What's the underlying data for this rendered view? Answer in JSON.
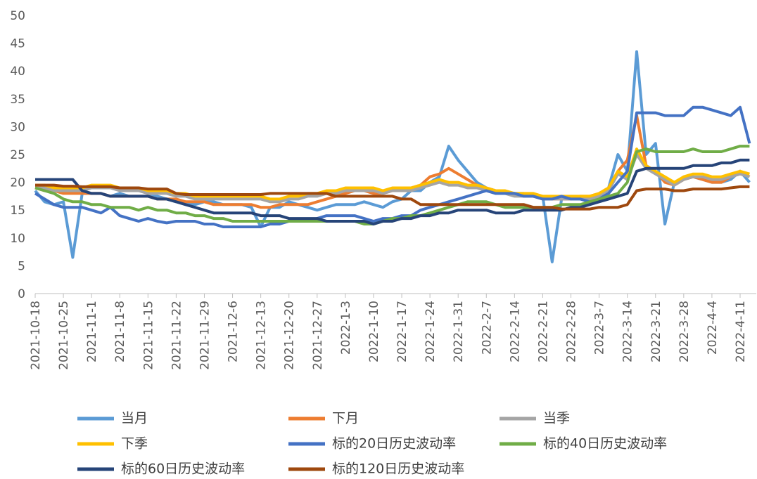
{
  "chart_data": {
    "type": "line",
    "categories": [
      "2021-10-18",
      null,
      null,
      "2021-10-25",
      null,
      null,
      "2021-11-1",
      null,
      null,
      "2021-11-8",
      null,
      null,
      "2021-11-15",
      null,
      null,
      "2021-11-22",
      null,
      null,
      "2021-11-29",
      null,
      null,
      "2021-12-6",
      null,
      null,
      "2021-12-13",
      null,
      null,
      "2021-12-20",
      null,
      null,
      "2021-12-27",
      null,
      null,
      "2022-1-3",
      null,
      null,
      "2022-1-10",
      null,
      null,
      "2022-1-17",
      null,
      null,
      "2022-1-24",
      null,
      null,
      "2022-1-31",
      null,
      null,
      "2022-2-7",
      null,
      null,
      "2022-2-14",
      null,
      null,
      "2022-2-21",
      null,
      null,
      "2022-2-28",
      null,
      null,
      "2022-3-7",
      null,
      null,
      "2022-3-14",
      null,
      null,
      "2022-3-21",
      null,
      null,
      "2022-3-28",
      null,
      null,
      "2022-4-4",
      null,
      null,
      "2022-4-11",
      null
    ],
    "ylim": [
      0,
      50
    ],
    "yticks": [
      0,
      5,
      10,
      15,
      20,
      25,
      30,
      35,
      40,
      45,
      50
    ],
    "series": [
      {
        "name": "当月",
        "color": "#5b9bd5",
        "values": [
          18.5,
          16.5,
          16,
          16.5,
          6.5,
          18,
          18,
          18,
          17.5,
          18,
          17.5,
          17.5,
          17.5,
          17.5,
          17,
          16.5,
          16.5,
          16,
          16.5,
          16.5,
          16,
          16,
          16,
          15.5,
          12,
          15.5,
          15.5,
          16.5,
          16,
          15.5,
          15,
          15.5,
          16,
          16,
          16,
          16.5,
          16,
          15.5,
          16.5,
          17,
          18.5,
          18.5,
          20,
          21,
          26.5,
          24,
          22,
          20,
          19,
          18.5,
          18,
          18,
          18,
          17.5,
          17.5,
          5.7,
          17,
          17,
          17.5,
          17,
          17,
          19,
          25,
          22,
          43.5,
          25,
          27,
          12.5,
          20,
          20.5,
          21,
          20.5,
          20,
          20,
          20.5,
          22,
          20
        ]
      },
      {
        "name": "下月",
        "color": "#ed7d31",
        "values": [
          19,
          18.5,
          18.5,
          18,
          18,
          18,
          18,
          18,
          17.5,
          17.5,
          17.5,
          17.5,
          17.5,
          17,
          17,
          17,
          16.5,
          16.5,
          16.5,
          16,
          16,
          16,
          16,
          16,
          15.5,
          15.5,
          16,
          16,
          16,
          16,
          16.5,
          17,
          17.5,
          18,
          18.5,
          18.5,
          18,
          18,
          18.5,
          18.5,
          19,
          19.5,
          21,
          21.5,
          22.5,
          21.5,
          20.5,
          19.5,
          19,
          18.5,
          18,
          18,
          17.5,
          17.5,
          17,
          17,
          17,
          17,
          17.5,
          17.5,
          18,
          19,
          22,
          24,
          32,
          23,
          22,
          20,
          19.5,
          20.5,
          21,
          20.5,
          20,
          20,
          21,
          22,
          21
        ]
      },
      {
        "name": "当季",
        "color": "#a5a5a5",
        "values": [
          19,
          19,
          18.5,
          18.5,
          18.5,
          18.5,
          19,
          19,
          19,
          18.5,
          18.5,
          18.5,
          18,
          18,
          18,
          17.5,
          17.5,
          17,
          17,
          17,
          17,
          17,
          17,
          17,
          17,
          16.5,
          16.5,
          17,
          17,
          17.5,
          17.5,
          18,
          18,
          18.5,
          18.5,
          18.5,
          18.5,
          18,
          18.5,
          18.5,
          18.5,
          19,
          19.5,
          20,
          19.5,
          19.5,
          19,
          19,
          18.5,
          18,
          18,
          17.5,
          17.5,
          17.5,
          17,
          17,
          17,
          17,
          17,
          17,
          17.5,
          18.5,
          21.5,
          20.5,
          25,
          22.5,
          21.5,
          20.5,
          19.5,
          20.5,
          21,
          21,
          20.5,
          20.5,
          21,
          21.5,
          21
        ]
      },
      {
        "name": "下季",
        "color": "#ffc000",
        "values": [
          19.5,
          19.5,
          19,
          19,
          19,
          19,
          19.5,
          19.5,
          19.5,
          19,
          19,
          19,
          18.5,
          18.5,
          18.5,
          18,
          18,
          17.5,
          17.5,
          17.5,
          17.5,
          17.5,
          17.5,
          17.5,
          17.5,
          17,
          17,
          17.5,
          17.5,
          18,
          18,
          18.5,
          18.5,
          19,
          19,
          19,
          19,
          18.5,
          19,
          19,
          19,
          19.5,
          20,
          20.5,
          20,
          20,
          19.5,
          19.5,
          19,
          18.5,
          18.5,
          18,
          18,
          18,
          17.5,
          17.5,
          17.5,
          17.5,
          17.5,
          17.5,
          18,
          19,
          22,
          21,
          26,
          23,
          22,
          21,
          20,
          21,
          21.5,
          21.5,
          21,
          21,
          21.5,
          22,
          21.5
        ]
      },
      {
        "name": "标的20日历史波动率",
        "color": "#4472c4",
        "values": [
          18,
          17,
          16,
          15.5,
          15.5,
          15.5,
          15,
          14.5,
          15.5,
          14,
          13.5,
          13,
          13.5,
          13,
          12.7,
          13,
          13,
          13,
          12.5,
          12.5,
          12,
          12,
          12,
          12,
          12,
          12.5,
          12.5,
          13,
          13,
          13,
          13.5,
          14,
          14,
          14,
          14,
          13.5,
          13,
          13.5,
          13.5,
          14,
          14,
          15,
          15.5,
          16,
          16.5,
          17,
          17.5,
          18,
          18.5,
          18,
          18,
          18,
          17.5,
          17.5,
          17,
          17,
          17.5,
          17,
          17,
          16.5,
          17,
          18,
          20,
          22,
          32.5,
          32.5,
          32.5,
          32,
          32,
          32,
          33.5,
          33.5,
          33,
          32.5,
          32,
          33.5,
          27
        ]
      },
      {
        "name": "标的40日历史波动率",
        "color": "#70ad47",
        "values": [
          19,
          18.5,
          18,
          17,
          16.5,
          16.5,
          16,
          16,
          15.5,
          15.5,
          15.5,
          15,
          15.5,
          15,
          15,
          14.5,
          14.5,
          14,
          14,
          13.5,
          13.5,
          13,
          13,
          13,
          13,
          13,
          13,
          13,
          13,
          13,
          13,
          13,
          13,
          13,
          13,
          12.5,
          12.5,
          13,
          13.5,
          13.5,
          14,
          14,
          14.5,
          15,
          15.5,
          16,
          16.5,
          16.5,
          16.5,
          16,
          15.5,
          15.5,
          15.5,
          15.5,
          15.5,
          15.5,
          16,
          16,
          16,
          16.5,
          17,
          17.5,
          18,
          20,
          25.5,
          26,
          25.5,
          25.5,
          25.5,
          25.5,
          26,
          25.5,
          25.5,
          25.5,
          26,
          26.5,
          26.5
        ]
      },
      {
        "name": "标的60日历史波动率",
        "color": "#264478",
        "values": [
          20.5,
          20.5,
          20.5,
          20.5,
          20.5,
          18.5,
          18,
          18,
          17.5,
          17.5,
          17.5,
          17.5,
          17.5,
          17,
          17,
          16.5,
          16,
          15.5,
          15,
          14.5,
          14.5,
          14.5,
          14.5,
          14.5,
          14,
          14,
          14,
          13.5,
          13.5,
          13.5,
          13.5,
          13,
          13,
          13,
          13,
          13,
          12.5,
          13,
          13,
          13.5,
          13.5,
          14,
          14,
          14.5,
          14.5,
          15,
          15,
          15,
          15,
          14.5,
          14.5,
          14.5,
          15,
          15,
          15,
          15,
          15,
          15.5,
          15.5,
          16,
          16.5,
          17,
          17.5,
          18,
          22,
          22.5,
          22.5,
          22.5,
          22.5,
          22.5,
          23,
          23,
          23,
          23.5,
          23.5,
          24,
          24
        ]
      },
      {
        "name": "标的120日历史波动率",
        "color": "#9e480e",
        "values": [
          19.5,
          19.5,
          19.5,
          19.3,
          19.3,
          19.2,
          19.2,
          19.2,
          19.2,
          19,
          19,
          19,
          18.8,
          18.8,
          18.8,
          18,
          17.8,
          17.8,
          17.8,
          17.8,
          17.8,
          17.8,
          17.8,
          17.8,
          17.8,
          18,
          18,
          18,
          18,
          18,
          18,
          18,
          17.5,
          17.5,
          17.5,
          17.5,
          17.5,
          17.5,
          17.5,
          17,
          17,
          16,
          16,
          16,
          16,
          16,
          16,
          16,
          16,
          16,
          16,
          16,
          16,
          15.5,
          15.5,
          15.5,
          15.2,
          15.2,
          15.2,
          15.2,
          15.5,
          15.5,
          15.5,
          16,
          18.5,
          18.8,
          18.8,
          18.8,
          18.5,
          18.5,
          18.8,
          18.8,
          18.8,
          18.8,
          19,
          19.2,
          19.2
        ]
      }
    ]
  }
}
